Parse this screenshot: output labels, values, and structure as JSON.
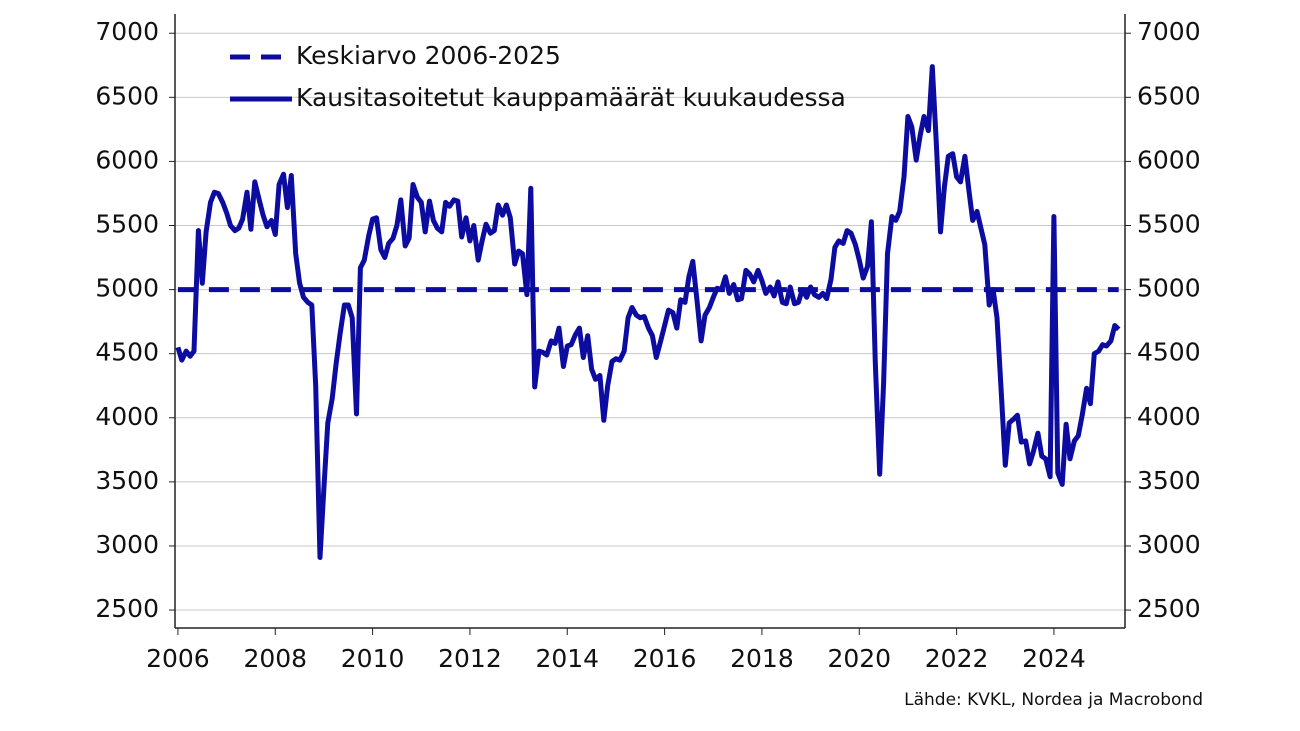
{
  "chart_data": {
    "type": "line",
    "source": "Lähde: KVKL, Nordea ja Macrobond",
    "xlim": [
      2005.94,
      2025.46
    ],
    "ylim": [
      2360,
      7150
    ],
    "xticks": [
      2006,
      2008,
      2010,
      2012,
      2014,
      2016,
      2018,
      2020,
      2022,
      2024
    ],
    "yticks": [
      2500,
      3000,
      3500,
      4000,
      4500,
      5000,
      5500,
      6000,
      6500,
      7000
    ],
    "grid": true,
    "legend": "upper left",
    "series": [
      {
        "name": "Keskiarvo 2006-2025",
        "color": "#0c0ca0",
        "dashed": true,
        "x": [
          2006,
          2025.33
        ],
        "values": [
          5000,
          5000
        ]
      },
      {
        "name": "Kausitasoitetut kauppamäärät kuukaudessa",
        "color": "#0c0ca0",
        "dashed": false,
        "x": [
          2006,
          2006.08,
          2006.17,
          2006.25,
          2006.33,
          2006.42,
          2006.5,
          2006.58,
          2006.67,
          2006.75,
          2006.83,
          2006.92,
          2007,
          2007.08,
          2007.17,
          2007.25,
          2007.33,
          2007.42,
          2007.5,
          2007.58,
          2007.67,
          2007.75,
          2007.83,
          2007.92,
          2008,
          2008.08,
          2008.17,
          2008.25,
          2008.33,
          2008.42,
          2008.5,
          2008.58,
          2008.67,
          2008.75,
          2008.83,
          2008.92,
          2009,
          2009.08,
          2009.17,
          2009.25,
          2009.33,
          2009.42,
          2009.5,
          2009.58,
          2009.67,
          2009.75,
          2009.83,
          2009.92,
          2010,
          2010.08,
          2010.17,
          2010.25,
          2010.33,
          2010.42,
          2010.5,
          2010.58,
          2010.67,
          2010.75,
          2010.83,
          2010.92,
          2011,
          2011.08,
          2011.17,
          2011.25,
          2011.33,
          2011.42,
          2011.5,
          2011.58,
          2011.67,
          2011.75,
          2011.83,
          2011.92,
          2012,
          2012.08,
          2012.17,
          2012.25,
          2012.33,
          2012.42,
          2012.5,
          2012.58,
          2012.67,
          2012.75,
          2012.83,
          2012.92,
          2013,
          2013.08,
          2013.17,
          2013.25,
          2013.33,
          2013.42,
          2013.5,
          2013.58,
          2013.67,
          2013.75,
          2013.83,
          2013.92,
          2014,
          2014.08,
          2014.17,
          2014.25,
          2014.33,
          2014.42,
          2014.5,
          2014.58,
          2014.67,
          2014.75,
          2014.83,
          2014.92,
          2015,
          2015.08,
          2015.17,
          2015.25,
          2015.33,
          2015.42,
          2015.5,
          2015.58,
          2015.67,
          2015.75,
          2015.83,
          2015.92,
          2016,
          2016.08,
          2016.17,
          2016.25,
          2016.33,
          2016.42,
          2016.5,
          2016.58,
          2016.67,
          2016.75,
          2016.83,
          2016.92,
          2017,
          2017.08,
          2017.17,
          2017.25,
          2017.33,
          2017.42,
          2017.5,
          2017.58,
          2017.67,
          2017.75,
          2017.83,
          2017.92,
          2018,
          2018.08,
          2018.17,
          2018.25,
          2018.33,
          2018.42,
          2018.5,
          2018.58,
          2018.67,
          2018.75,
          2018.83,
          2018.92,
          2019,
          2019.08,
          2019.17,
          2019.25,
          2019.33,
          2019.42,
          2019.5,
          2019.58,
          2019.67,
          2019.75,
          2019.83,
          2019.92,
          2020,
          2020.08,
          2020.17,
          2020.25,
          2020.33,
          2020.42,
          2020.5,
          2020.58,
          2020.67,
          2020.75,
          2020.83,
          2020.92,
          2021,
          2021.08,
          2021.17,
          2021.25,
          2021.33,
          2021.42,
          2021.5,
          2021.58,
          2021.67,
          2021.75,
          2021.83,
          2021.92,
          2022,
          2022.08,
          2022.17,
          2022.25,
          2022.33,
          2022.42,
          2022.5,
          2022.58,
          2022.67,
          2022.75,
          2022.83,
          2022.92,
          2023,
          2023.08,
          2023.17,
          2023.25,
          2023.33,
          2023.42,
          2023.5,
          2023.58,
          2023.67,
          2023.75,
          2023.83,
          2023.92,
          2024,
          2024.08,
          2024.17,
          2024.25,
          2024.33,
          2024.42,
          2024.5,
          2024.58,
          2024.67,
          2024.75,
          2024.83,
          2024.92,
          2025,
          2025.08,
          2025.17,
          2025.25,
          2025.33
        ],
        "values": [
          4550,
          4450,
          4520,
          4480,
          4520,
          5460,
          5050,
          5450,
          5680,
          5760,
          5750,
          5680,
          5600,
          5500,
          5460,
          5480,
          5550,
          5760,
          5470,
          5840,
          5700,
          5580,
          5490,
          5540,
          5430,
          5820,
          5900,
          5640,
          5890,
          5280,
          5050,
          4940,
          4900,
          4880,
          4250,
          2910,
          3450,
          3960,
          4150,
          4420,
          4650,
          4880,
          4880,
          4780,
          4030,
          5170,
          5230,
          5420,
          5550,
          5560,
          5310,
          5250,
          5360,
          5400,
          5500,
          5700,
          5340,
          5400,
          5820,
          5720,
          5680,
          5450,
          5690,
          5540,
          5480,
          5450,
          5680,
          5650,
          5700,
          5690,
          5410,
          5560,
          5380,
          5500,
          5230,
          5380,
          5510,
          5440,
          5460,
          5660,
          5580,
          5660,
          5560,
          5200,
          5300,
          5280,
          4960,
          5790,
          4240,
          4520,
          4510,
          4490,
          4600,
          4580,
          4700,
          4400,
          4560,
          4570,
          4650,
          4700,
          4470,
          4640,
          4380,
          4300,
          4330,
          3980,
          4250,
          4440,
          4460,
          4450,
          4520,
          4780,
          4860,
          4800,
          4780,
          4790,
          4700,
          4640,
          4470,
          4600,
          4720,
          4840,
          4820,
          4700,
          4920,
          4900,
          5100,
          5220,
          4900,
          4600,
          4800,
          4860,
          4940,
          5010,
          5000,
          5100,
          4970,
          5040,
          4920,
          4930,
          5150,
          5120,
          5060,
          5150,
          5070,
          4970,
          5020,
          4950,
          5060,
          4900,
          4890,
          5020,
          4890,
          4900,
          5000,
          4940,
          5020,
          4960,
          4940,
          4970,
          4930,
          5080,
          5330,
          5380,
          5360,
          5460,
          5440,
          5350,
          5230,
          5090,
          5180,
          5530,
          4430,
          3560,
          4270,
          5280,
          5570,
          5540,
          5610,
          5880,
          6350,
          6270,
          6010,
          6200,
          6350,
          6240,
          6740,
          6160,
          5450,
          5800,
          6040,
          6060,
          5880,
          5840,
          6040,
          5780,
          5540,
          5610,
          5480,
          5350,
          4880,
          5000,
          4780,
          4180,
          3630,
          3960,
          3990,
          4020,
          3810,
          3820,
          3640,
          3740,
          3880,
          3700,
          3680,
          3540,
          5570,
          3570,
          3480,
          3950,
          3680,
          3820,
          3860,
          4020,
          4230,
          4110,
          4500,
          4520,
          4570,
          4560,
          4600,
          4720,
          4690
        ]
      }
    ]
  }
}
